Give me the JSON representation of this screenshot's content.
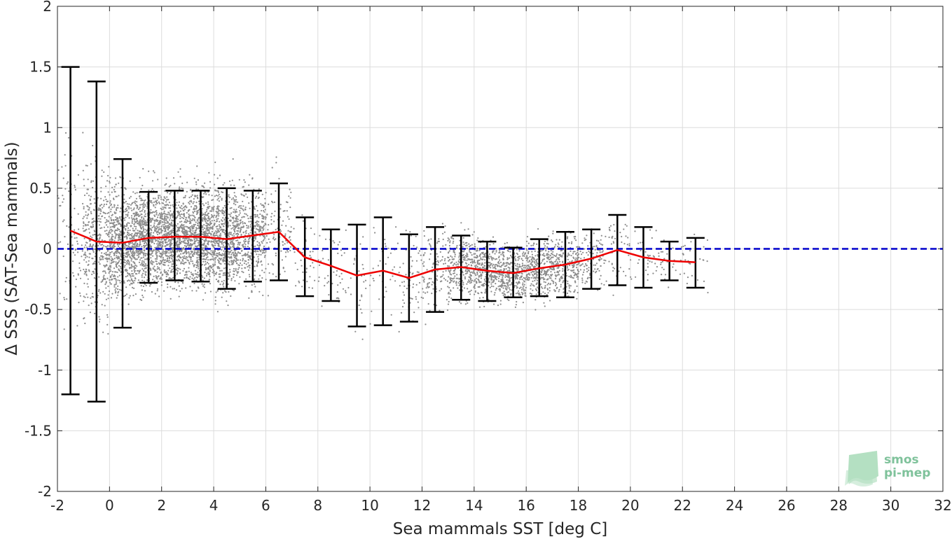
{
  "chart_data": {
    "type": "scatter",
    "xlabel": "Sea mammals SST [deg C]",
    "ylabel": "Δ SSS (SAT-Sea mammals)",
    "xlim": [
      -2,
      32
    ],
    "ylim": [
      -2,
      2
    ],
    "xticks": [
      "-2",
      "0",
      "2",
      "4",
      "6",
      "8",
      "10",
      "12",
      "14",
      "16",
      "18",
      "20",
      "22",
      "24",
      "26",
      "28",
      "30",
      "32"
    ],
    "yticks": [
      "-2",
      "-1.5",
      "-1",
      "-0.5",
      "0",
      "0.5",
      "1",
      "1.5",
      "2"
    ],
    "grid": true,
    "reference_line": {
      "y": 0,
      "color": "#0000cc",
      "style": "dashed"
    },
    "scatter_color": "#8c8c8c",
    "mean_line_color": "#ee0000",
    "errorbar_color": "#000000",
    "series": [
      {
        "kind": "errorbar",
        "x": [
          -1.5,
          -0.5,
          0.5,
          1.5,
          2.5,
          3.5,
          4.5,
          5.5,
          6.5,
          7.5,
          8.5,
          9.5,
          10.5,
          11.5,
          12.5,
          13.5,
          14.5,
          15.5,
          16.5,
          17.5,
          18.5,
          19.5,
          20.5,
          21.5,
          22.5
        ],
        "mean": [
          0.15,
          0.06,
          0.05,
          0.09,
          0.1,
          0.1,
          0.08,
          0.11,
          0.14,
          -0.07,
          -0.14,
          -0.22,
          -0.18,
          -0.24,
          -0.17,
          -0.15,
          -0.18,
          -0.2,
          -0.16,
          -0.13,
          -0.08,
          -0.01,
          -0.07,
          -0.1,
          -0.11
        ],
        "upper": [
          1.5,
          1.38,
          0.74,
          0.47,
          0.48,
          0.48,
          0.5,
          0.48,
          0.54,
          0.26,
          0.16,
          0.2,
          0.26,
          0.12,
          0.18,
          0.11,
          0.06,
          0.01,
          0.08,
          0.14,
          0.16,
          0.28,
          0.18,
          0.06,
          0.09
        ],
        "lower": [
          -1.2,
          -1.26,
          -0.65,
          -0.28,
          -0.26,
          -0.27,
          -0.33,
          -0.27,
          -0.26,
          -0.39,
          -0.43,
          -0.64,
          -0.63,
          -0.6,
          -0.52,
          -0.42,
          -0.43,
          -0.4,
          -0.39,
          -0.4,
          -0.33,
          -0.3,
          -0.32,
          -0.26,
          -0.32
        ]
      }
    ],
    "point_clouds": [
      {
        "x": -1.5,
        "center": 0.15,
        "spread": 0.65,
        "density": 90
      },
      {
        "x": -0.5,
        "center": 0.06,
        "spread": 0.55,
        "density": 380
      },
      {
        "x": 0.5,
        "center": 0.05,
        "spread": 0.4,
        "density": 650
      },
      {
        "x": 1.5,
        "center": 0.09,
        "spread": 0.36,
        "density": 700
      },
      {
        "x": 2.5,
        "center": 0.1,
        "spread": 0.36,
        "density": 700
      },
      {
        "x": 3.5,
        "center": 0.1,
        "spread": 0.36,
        "density": 680
      },
      {
        "x": 4.5,
        "center": 0.08,
        "spread": 0.4,
        "density": 600
      },
      {
        "x": 5.5,
        "center": 0.11,
        "spread": 0.38,
        "density": 380
      },
      {
        "x": 6.5,
        "center": 0.14,
        "spread": 0.4,
        "density": 110
      },
      {
        "x": 7.5,
        "center": -0.07,
        "spread": 0.32,
        "density": 40
      },
      {
        "x": 8.5,
        "center": -0.14,
        "spread": 0.3,
        "density": 40
      },
      {
        "x": 9.5,
        "center": -0.22,
        "spread": 0.4,
        "density": 30
      },
      {
        "x": 10.5,
        "center": -0.18,
        "spread": 0.42,
        "density": 35
      },
      {
        "x": 11.5,
        "center": -0.24,
        "spread": 0.35,
        "density": 60
      },
      {
        "x": 12.5,
        "center": -0.17,
        "spread": 0.32,
        "density": 120
      },
      {
        "x": 13.5,
        "center": -0.15,
        "spread": 0.25,
        "density": 260
      },
      {
        "x": 14.5,
        "center": -0.18,
        "spread": 0.22,
        "density": 330
      },
      {
        "x": 15.5,
        "center": -0.2,
        "spread": 0.2,
        "density": 320
      },
      {
        "x": 16.5,
        "center": -0.16,
        "spread": 0.22,
        "density": 300
      },
      {
        "x": 17.5,
        "center": -0.13,
        "spread": 0.24,
        "density": 260
      },
      {
        "x": 18.5,
        "center": -0.08,
        "spread": 0.22,
        "density": 120
      },
      {
        "x": 19.5,
        "center": -0.01,
        "spread": 0.28,
        "density": 50
      },
      {
        "x": 20.5,
        "center": -0.07,
        "spread": 0.24,
        "density": 35
      },
      {
        "x": 21.5,
        "center": -0.1,
        "spread": 0.15,
        "density": 30
      },
      {
        "x": 22.5,
        "center": -0.11,
        "spread": 0.2,
        "density": 25
      }
    ]
  },
  "logo": {
    "line1": "smos",
    "line2": "pi-mep",
    "text_color": "#7fc29b",
    "shape_color": "#a8dbb8"
  }
}
